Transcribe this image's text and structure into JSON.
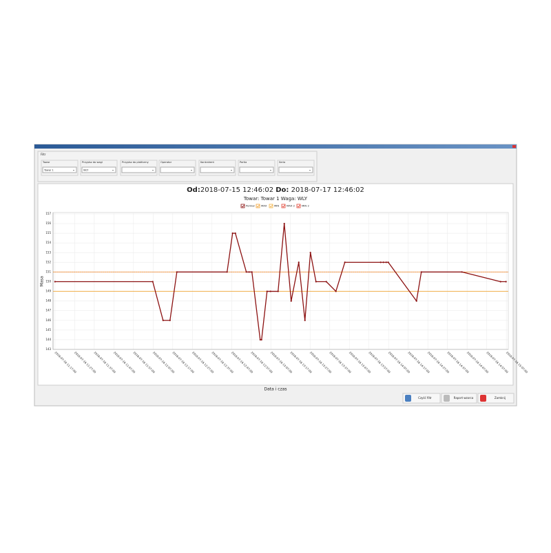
{
  "window": {
    "filter_title": "Filtr",
    "filters": [
      {
        "label": "Towar",
        "value": "Towar 1"
      },
      {
        "label": "Przypisz do wagi",
        "value": "WLY"
      },
      {
        "label": "Przypisz do platformy"
      },
      {
        "label": "Operator"
      },
      {
        "label": "Kontrahent"
      },
      {
        "label": "Partia"
      },
      {
        "label": "Seria"
      }
    ],
    "buttons": [
      "Czyść filtr",
      "Raport wzorca",
      "Zamknij"
    ]
  },
  "chart_data": {
    "type": "line",
    "title_from_label": "Od:",
    "title_from": "2018-07-15 12:46:02",
    "title_to_label": "Do:",
    "title_to": "2018-07-17 12:46:02",
    "subtitle": "Towar: Towar 1 Waga: WLY",
    "x_label": "Data i czas",
    "y_label": "Masa",
    "xlim": [
      "2018-07-16 11:16:00",
      "2018-07-16 15:08:00"
    ],
    "xticks": [
      "2018-07-16 11:17:00",
      "2018-07-16 11:27:00",
      "2018-07-16 11:37:00",
      "2018-07-16 11:47:00",
      "2018-07-16 11:57:00",
      "2018-07-16 12:07:00",
      "2018-07-16 12:17:00",
      "2018-07-16 12:27:00",
      "2018-07-16 12:37:00",
      "2018-07-16 12:47:00",
      "2018-07-16 12:57:00",
      "2018-07-16 13:07:00",
      "2018-07-16 13:17:00",
      "2018-07-16 13:27:00",
      "2018-07-16 13:37:00",
      "2018-07-16 13:47:00",
      "2018-07-16 13:57:00",
      "2018-07-16 14:07:00",
      "2018-07-16 14:17:00",
      "2018-07-16 14:27:00",
      "2018-07-16 14:37:00",
      "2018-07-16 14:47:00",
      "2018-07-16 14:57:00",
      "2018-07-16 15:07:00"
    ],
    "ylim": [
      143,
      157
    ],
    "yticks": [
      143,
      144,
      145,
      146,
      147,
      148,
      149,
      150,
      151,
      152,
      153,
      154,
      155,
      156,
      157
    ],
    "grid": true,
    "series": [
      {
        "name": "Pomiar",
        "color": "#8b1010",
        "x": [
          "2018-07-16 11:17:00",
          "2018-07-16 12:06:49",
          "2018-07-16 12:12:05",
          "2018-07-16 12:15:36",
          "2018-07-16 12:19:06",
          "2018-07-16 12:44:42",
          "2018-07-16 12:47:30",
          "2018-07-16 12:48:55",
          "2018-07-16 12:54:30",
          "2018-07-16 12:55:56",
          "2018-07-16 12:57:21",
          "2018-07-16 13:01:34",
          "2018-07-16 13:02:16",
          "2018-07-16 13:05:04",
          "2018-07-16 13:06:49",
          "2018-07-16 13:10:41",
          "2018-07-16 13:13:50",
          "2018-07-16 13:17:21",
          "2018-07-16 13:21:13",
          "2018-07-16 13:24:22",
          "2018-07-16 13:27:10",
          "2018-07-16 13:30:00",
          "2018-07-16 13:35:15",
          "2018-07-16 13:40:09",
          "2018-07-16 13:44:43",
          "2018-07-16 14:02:58",
          "2018-07-16 14:04:22",
          "2018-07-16 14:05:47",
          "2018-07-16 14:06:50",
          "2018-07-16 14:21:13",
          "2018-07-16 14:23:41",
          "2018-07-16 14:44:22",
          "2018-07-16 15:04:02",
          "2018-07-16 15:06:50"
        ],
        "values": [
          150,
          150,
          146,
          146,
          151,
          151,
          155,
          155,
          151,
          151,
          151,
          144,
          144,
          149,
          149,
          149,
          156,
          148,
          152,
          146,
          153,
          150,
          150,
          149,
          152,
          152,
          152,
          152,
          152,
          148,
          151,
          151,
          150,
          150
        ]
      },
      {
        "name": "MAX",
        "color": "#f0a030",
        "value": 151,
        "dashed": true
      },
      {
        "name": "MIN",
        "color": "#f0b040",
        "value": 149
      },
      {
        "name": "MAX 2",
        "color": "#e04030",
        "value": 151
      },
      {
        "name": "MIN 2",
        "color": "#e04030",
        "value": 149
      }
    ]
  }
}
